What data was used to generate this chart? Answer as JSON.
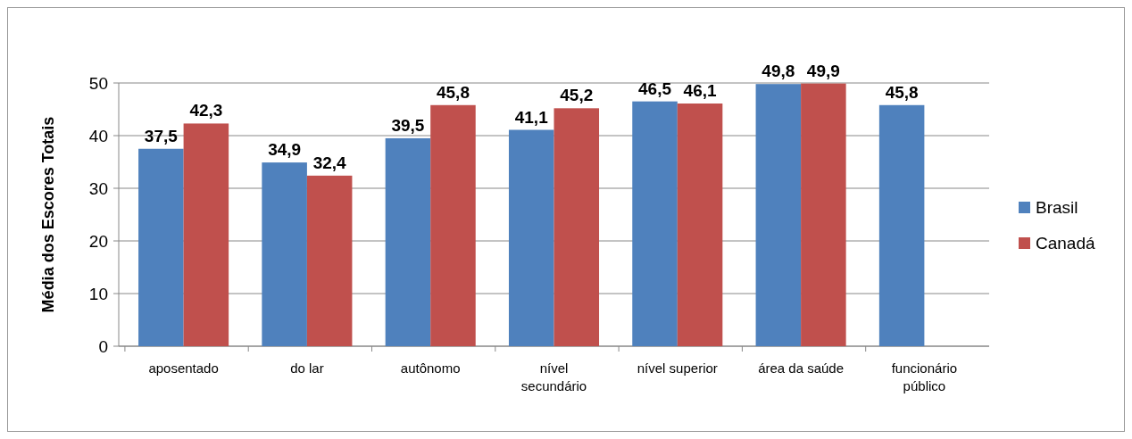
{
  "chart_data": {
    "type": "bar",
    "ylabel": "Média dos Escores Totais",
    "categories": [
      "aposentado",
      "do lar",
      "autônomo",
      "nível secundário",
      "nível superior",
      "área da saúde",
      "funcionário público"
    ],
    "series": [
      {
        "name": "Brasil",
        "color": "#4f81bd",
        "values": [
          37.5,
          34.9,
          39.5,
          41.1,
          46.5,
          49.8,
          45.8
        ],
        "value_labels": [
          "37,5",
          "34,9",
          "39,5",
          "41,1",
          "46,5",
          "49,8",
          "45,8"
        ]
      },
      {
        "name": "Canadá",
        "color": "#c0504d",
        "values": [
          42.3,
          32.4,
          45.8,
          45.2,
          46.1,
          49.9,
          null
        ],
        "value_labels": [
          "42,3",
          "32,4",
          "45,8",
          "45,2",
          "46,1",
          "49,9",
          null
        ]
      }
    ],
    "ylim": [
      0,
      50
    ],
    "yticks": [
      0,
      10,
      20,
      30,
      40,
      50
    ],
    "grid": "y",
    "legend": "right"
  }
}
